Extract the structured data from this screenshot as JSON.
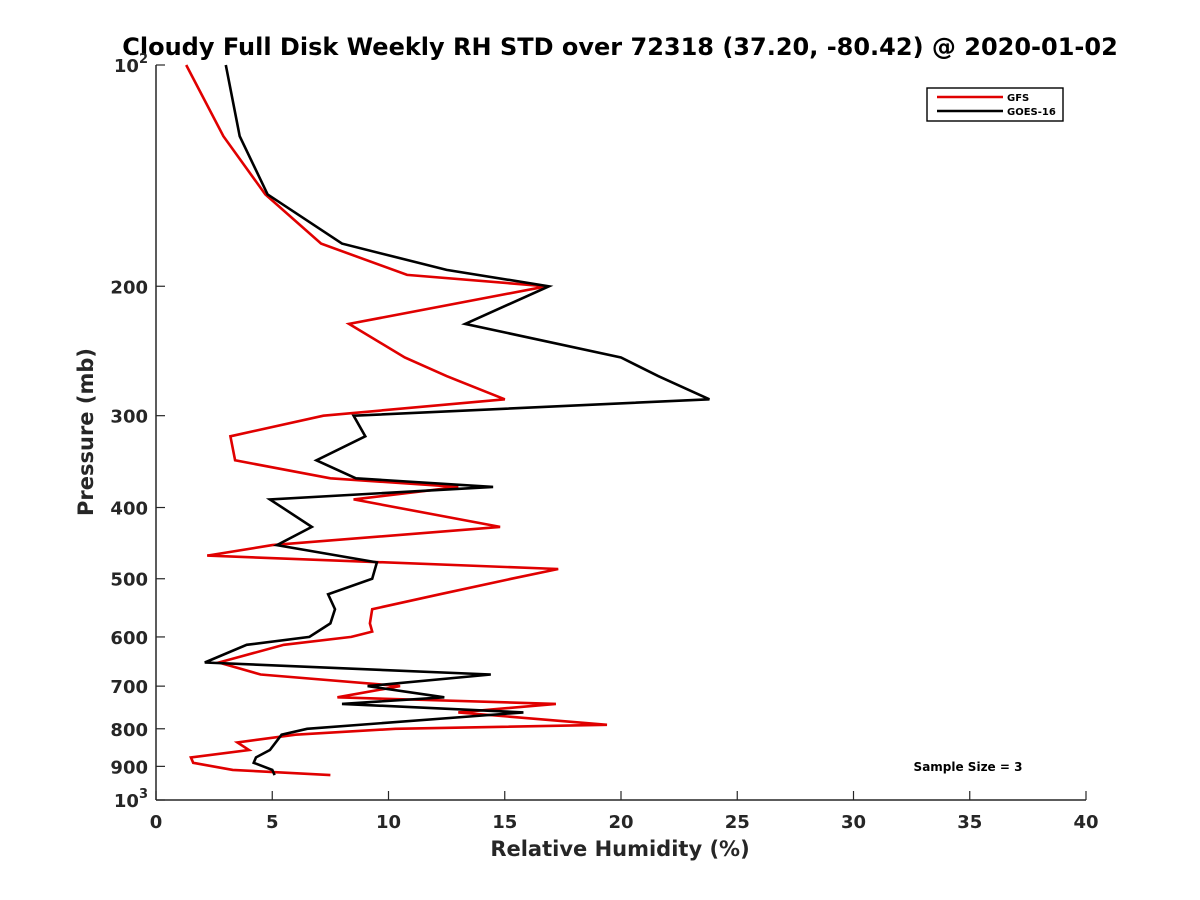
{
  "chart_data": {
    "type": "line",
    "title": "Cloudy Full Disk Weekly RH STD over 72318 (37.20, -80.42) @ 2020-01-02",
    "xlabel": "Relative Humidity (%)",
    "ylabel": "Pressure (mb)",
    "xlim": [
      0,
      40
    ],
    "ylim": [
      100,
      1000
    ],
    "yscale": "log",
    "y_reversed": true,
    "grid": false,
    "x_ticks": [
      0,
      5,
      10,
      15,
      20,
      25,
      30,
      35,
      40
    ],
    "x_tick_labels": [
      "0",
      "5",
      "10",
      "15",
      "20",
      "25",
      "30",
      "35",
      "40"
    ],
    "y_ticks": [
      100,
      200,
      300,
      400,
      500,
      600,
      700,
      800,
      900,
      1000
    ],
    "y_tick_labels": [
      {
        "base": "10",
        "sup": "2"
      },
      {
        "base": "200"
      },
      {
        "base": "300"
      },
      {
        "base": "400"
      },
      {
        "base": "500"
      },
      {
        "base": "600"
      },
      {
        "base": "700"
      },
      {
        "base": "800"
      },
      {
        "base": "900"
      },
      {
        "base": "10",
        "sup": "3"
      }
    ],
    "legend_position": "top-right",
    "annotation": "Sample Size = 3",
    "series": [
      {
        "name": "GFS",
        "color": "#e00000",
        "points": [
          [
            1.3,
            100
          ],
          [
            2.9,
            125
          ],
          [
            4.7,
            150
          ],
          [
            7.1,
            175
          ],
          [
            10.8,
            193
          ],
          [
            16.8,
            200
          ],
          [
            8.3,
            225
          ],
          [
            10.7,
            250
          ],
          [
            12.5,
            265
          ],
          [
            15.0,
            285
          ],
          [
            7.2,
            300
          ],
          [
            3.2,
            320
          ],
          [
            3.4,
            345
          ],
          [
            7.5,
            365
          ],
          [
            13.0,
            375
          ],
          [
            8.5,
            390
          ],
          [
            14.8,
            425
          ],
          [
            5.0,
            450
          ],
          [
            2.2,
            465
          ],
          [
            17.3,
            485
          ],
          [
            15.3,
            500
          ],
          [
            12.2,
            525
          ],
          [
            9.3,
            550
          ],
          [
            9.2,
            575
          ],
          [
            9.3,
            590
          ],
          [
            8.4,
            600
          ],
          [
            5.5,
            615
          ],
          [
            2.7,
            650
          ],
          [
            4.5,
            675
          ],
          [
            10.5,
            700
          ],
          [
            7.8,
            725
          ],
          [
            17.2,
            740
          ],
          [
            13.0,
            760
          ],
          [
            19.4,
            790
          ],
          [
            10.3,
            800
          ],
          [
            6.0,
            815
          ],
          [
            3.5,
            835
          ],
          [
            4.0,
            855
          ],
          [
            1.5,
            875
          ],
          [
            1.6,
            890
          ],
          [
            3.3,
            910
          ],
          [
            7.5,
            925
          ]
        ]
      },
      {
        "name": "GOES-16",
        "color": "#000000",
        "points": [
          [
            3.0,
            100
          ],
          [
            3.6,
            125
          ],
          [
            4.8,
            150
          ],
          [
            8.0,
            175
          ],
          [
            12.5,
            190
          ],
          [
            16.9,
            200
          ],
          [
            13.3,
            225
          ],
          [
            20.0,
            250
          ],
          [
            21.6,
            265
          ],
          [
            23.8,
            285
          ],
          [
            8.5,
            300
          ],
          [
            9.0,
            320
          ],
          [
            6.9,
            345
          ],
          [
            8.6,
            365
          ],
          [
            14.5,
            375
          ],
          [
            4.9,
            390
          ],
          [
            6.7,
            425
          ],
          [
            5.2,
            450
          ],
          [
            9.5,
            475
          ],
          [
            9.3,
            500
          ],
          [
            7.4,
            525
          ],
          [
            7.7,
            550
          ],
          [
            7.5,
            575
          ],
          [
            6.6,
            600
          ],
          [
            3.9,
            615
          ],
          [
            2.1,
            650
          ],
          [
            14.4,
            675
          ],
          [
            9.1,
            700
          ],
          [
            12.4,
            725
          ],
          [
            8.0,
            740
          ],
          [
            15.8,
            760
          ],
          [
            6.5,
            800
          ],
          [
            5.4,
            815
          ],
          [
            4.9,
            855
          ],
          [
            4.3,
            875
          ],
          [
            4.2,
            890
          ],
          [
            5.0,
            910
          ],
          [
            5.1,
            925
          ]
        ]
      }
    ]
  }
}
